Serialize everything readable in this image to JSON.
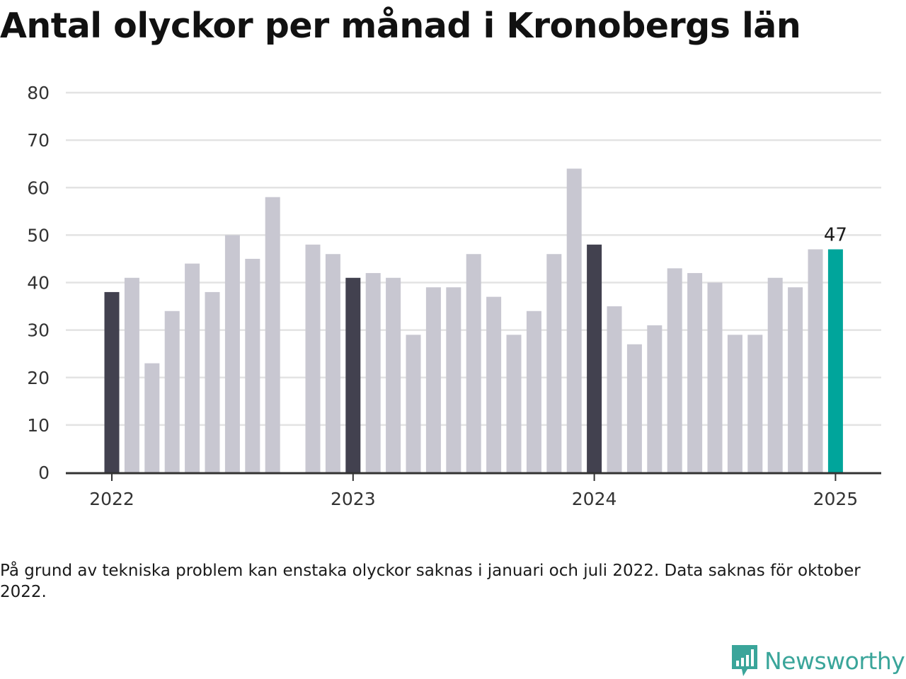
{
  "title": "Antal olyckor per månad i Kronobergs län",
  "note": "På grund av tekniska problem kan enstaka olyckor saknas i januari och juli 2022. Data saknas för oktober 2022.",
  "brand": {
    "name": "Newsworthy"
  },
  "colors": {
    "january": "#42414f",
    "other": "#c8c7d1",
    "latest": "#00a59b",
    "grid": "#e3e3e3",
    "axis": "#333333",
    "brand": "#3aa59a"
  },
  "chart_data": {
    "type": "bar",
    "title": "Antal olyckor per månad i Kronobergs län",
    "xlabel": "",
    "ylabel": "",
    "ylim": [
      0,
      80
    ],
    "yticks": [
      0,
      10,
      20,
      30,
      40,
      50,
      60,
      70,
      80
    ],
    "xticks": [
      "2022",
      "2023",
      "2024",
      "2025"
    ],
    "grid": true,
    "categories": [
      "2022-01",
      "2022-02",
      "2022-03",
      "2022-04",
      "2022-05",
      "2022-06",
      "2022-07",
      "2022-08",
      "2022-09",
      "2022-10",
      "2022-11",
      "2022-12",
      "2023-01",
      "2023-02",
      "2023-03",
      "2023-04",
      "2023-05",
      "2023-06",
      "2023-07",
      "2023-08",
      "2023-09",
      "2023-10",
      "2023-11",
      "2023-12",
      "2024-01",
      "2024-02",
      "2024-03",
      "2024-04",
      "2024-05",
      "2024-06",
      "2024-07",
      "2024-08",
      "2024-09",
      "2024-10",
      "2024-11",
      "2024-12",
      "2025-01"
    ],
    "values": [
      38,
      41,
      23,
      34,
      44,
      38,
      50,
      45,
      58,
      null,
      48,
      46,
      41,
      42,
      41,
      29,
      39,
      39,
      46,
      37,
      29,
      34,
      46,
      64,
      48,
      35,
      27,
      31,
      43,
      42,
      40,
      29,
      29,
      41,
      39,
      47,
      47
    ],
    "annotations": [
      {
        "category": "2025-01",
        "text": "47"
      }
    ]
  }
}
